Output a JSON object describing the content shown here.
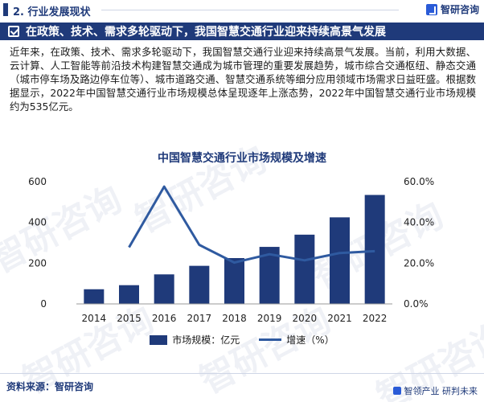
{
  "header": {
    "section_title": "2. 行业发展现状",
    "brand": "智研咨询"
  },
  "headline": "在政策、技术、需求多轮驱动下，我国智慧交通行业迎来持续高景气发展",
  "paragraph": "近年来，在政策、技术、需求多轮驱动下，我国智慧交通行业迎来持续高景气发展。当前，利用大数据、云计算、人工智能等前沿技术构建智慧交通成为城市管理的重要发展趋势，城市综合交通枢纽、静态交通（城市停车场及路边停车位等）、城市道路交通、智慧交通系统等细分应用领域市场需求日益旺盛。根据数据显示，2022年中国智慧交通行业市场规模总体呈现逐年上涨态势，2022年中国智慧交通行业市场规模约为535亿元。",
  "watermark_text": "智研咨询",
  "chart_data": {
    "type": "bar",
    "title": "中国智慧交通行业市场规模及增速",
    "categories": [
      "2014",
      "2015",
      "2016",
      "2017",
      "2018",
      "2019",
      "2020",
      "2021",
      "2022"
    ],
    "series": [
      {
        "name": "市场规模：亿元",
        "type": "bar",
        "axis": "left",
        "values": [
          72,
          92,
          145,
          187,
          225,
          280,
          340,
          425,
          535
        ]
      },
      {
        "name": "增速（%）",
        "type": "line",
        "axis": "right",
        "values": [
          null,
          27.8,
          57.6,
          29.0,
          20.3,
          24.4,
          21.4,
          25.0,
          25.9
        ]
      }
    ],
    "y_left": {
      "range": [
        0,
        600
      ],
      "ticks": [
        "0",
        "200",
        "400",
        "600"
      ]
    },
    "y_right": {
      "range": [
        0,
        60
      ],
      "ticks": [
        "0.0%",
        "20.0%",
        "40.0%",
        "60.0%"
      ]
    },
    "colors": {
      "bar": "#1f3a7a",
      "line": "#2f5aa0"
    },
    "legend": {
      "position": "bottom",
      "items": [
        "市场规模：亿元",
        "增速（%）"
      ]
    }
  },
  "footer": {
    "source": "资料来源：智研咨询",
    "slogan": "智领产业 研判未来"
  }
}
